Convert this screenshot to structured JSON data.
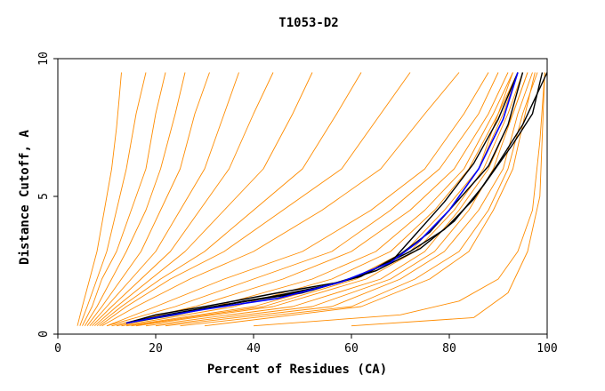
{
  "chart_data": {
    "type": "line",
    "title": "T1053-D2",
    "xlabel": "Percent of Residues (CA)",
    "ylabel": "Distance Cutoff, A",
    "xlim": [
      0,
      100
    ],
    "ylim": [
      0,
      10
    ],
    "xticks": [
      "0",
      "20",
      "40",
      "60",
      "80",
      "100"
    ],
    "yticks": [
      "0",
      "5",
      "10"
    ],
    "grid": false,
    "legend": "none",
    "colors": {
      "bundle": "#ff8c00",
      "highlight_black": "#000000",
      "highlight_blue": "#0000ff",
      "axis": "#000000"
    },
    "bundle_series": [
      {
        "x": [
          4,
          5,
          6.5,
          8,
          9.5,
          11,
          12,
          12.5,
          13
        ],
        "y": [
          0.3,
          1,
          2,
          3,
          4.5,
          6,
          7.5,
          8.5,
          9.5
        ]
      },
      {
        "x": [
          4.5,
          6,
          8,
          10,
          12,
          14,
          16,
          18
        ],
        "y": [
          0.3,
          1,
          2,
          3,
          4.5,
          6,
          8,
          9.5
        ]
      },
      {
        "x": [
          5,
          7,
          9,
          12,
          15,
          18,
          20,
          22
        ],
        "y": [
          0.3,
          1,
          2,
          3,
          4.5,
          6,
          8,
          9.5
        ]
      },
      {
        "x": [
          5.5,
          8,
          11,
          14,
          18,
          21,
          24,
          26
        ],
        "y": [
          0.3,
          1,
          2,
          3,
          4.5,
          6,
          8,
          9.5
        ]
      },
      {
        "x": [
          6,
          9,
          13,
          17,
          21,
          25,
          28,
          31
        ],
        "y": [
          0.3,
          1,
          2,
          3,
          4.5,
          6,
          8,
          9.5
        ]
      },
      {
        "x": [
          6.5,
          10,
          15,
          20,
          25,
          30,
          34,
          37
        ],
        "y": [
          0.3,
          1,
          2,
          3,
          4.5,
          6,
          8,
          9.5
        ]
      },
      {
        "x": [
          7,
          11,
          17,
          23,
          29,
          35,
          40,
          44
        ],
        "y": [
          0.3,
          1,
          2,
          3,
          4.5,
          6,
          8,
          9.5
        ]
      },
      {
        "x": [
          7.5,
          12,
          19,
          26,
          34,
          42,
          48,
          52
        ],
        "y": [
          0.3,
          1,
          2,
          3,
          4.5,
          6,
          8,
          9.5
        ]
      },
      {
        "x": [
          8,
          13,
          21,
          30,
          40,
          50,
          57,
          62
        ],
        "y": [
          0.3,
          1,
          2,
          3,
          4.5,
          6,
          8,
          9.5
        ]
      },
      {
        "x": [
          8.5,
          14,
          23,
          34,
          46,
          58,
          66,
          72
        ],
        "y": [
          0.3,
          1,
          2,
          3,
          4.5,
          6,
          8,
          9.5
        ]
      },
      {
        "x": [
          9,
          16,
          27,
          40,
          54,
          66,
          75,
          82
        ],
        "y": [
          0.3,
          1,
          2,
          3,
          4.5,
          6,
          8,
          9.5
        ]
      },
      {
        "x": [
          10,
          20,
          34,
          50,
          64,
          75,
          83,
          88
        ],
        "y": [
          0.3,
          1,
          2,
          3,
          4.5,
          6,
          8,
          9.5
        ]
      },
      {
        "x": [
          10,
          24,
          40,
          56,
          68,
          78,
          86,
          90
        ],
        "y": [
          0.3,
          1,
          2,
          3,
          4.5,
          6,
          8,
          9.5
        ]
      },
      {
        "x": [
          11,
          28,
          46,
          60,
          72,
          81,
          88,
          92
        ],
        "y": [
          0.3,
          1,
          2,
          3,
          4.5,
          6,
          8,
          9.5
        ]
      },
      {
        "x": [
          12,
          32,
          52,
          65,
          75,
          83,
          89,
          93
        ],
        "y": [
          0.3,
          1,
          2,
          3,
          4.5,
          6,
          8,
          9.5
        ]
      },
      {
        "x": [
          13,
          36,
          56,
          68,
          77,
          84,
          90,
          94
        ],
        "y": [
          0.3,
          1,
          2,
          3,
          4.5,
          6,
          8,
          9.5
        ]
      },
      {
        "x": [
          14,
          40,
          60,
          71,
          79,
          86,
          91,
          94
        ],
        "y": [
          0.3,
          1,
          2,
          3,
          4.5,
          6,
          8,
          9.5
        ]
      },
      {
        "x": [
          16,
          44,
          63,
          73,
          81,
          87,
          92,
          95
        ],
        "y": [
          0.3,
          1,
          2,
          3,
          4.5,
          6,
          8,
          9.5
        ]
      },
      {
        "x": [
          18,
          48,
          66,
          75,
          82,
          88,
          93,
          96
        ],
        "y": [
          0.3,
          1,
          2,
          3,
          4.5,
          6,
          8,
          9.5
        ]
      },
      {
        "x": [
          20,
          52,
          68,
          77,
          84,
          89,
          93,
          96
        ],
        "y": [
          0.3,
          1,
          2,
          3,
          4.5,
          6,
          8,
          9.5
        ]
      },
      {
        "x": [
          22,
          56,
          70,
          79,
          86,
          91,
          94,
          97
        ],
        "y": [
          0.3,
          1,
          2,
          3,
          4.5,
          6,
          8,
          9.5
        ]
      },
      {
        "x": [
          25,
          60,
          73,
          82,
          88,
          92,
          95,
          98
        ],
        "y": [
          0.3,
          1,
          2,
          3,
          4.5,
          6,
          8,
          9.5
        ]
      },
      {
        "x": [
          40,
          70,
          82,
          90,
          94,
          97,
          98.5,
          99.5
        ],
        "y": [
          0.3,
          0.7,
          1.2,
          2,
          3,
          4.5,
          7,
          9.5
        ]
      },
      {
        "x": [
          60,
          85,
          92,
          96,
          98.5,
          99.5
        ],
        "y": [
          0.3,
          0.6,
          1.5,
          3,
          5,
          9.5
        ]
      },
      {
        "x": [
          30,
          62,
          76,
          84,
          89,
          93,
          95.5,
          97.5
        ],
        "y": [
          0.3,
          1,
          2,
          3,
          4.5,
          6,
          8,
          9.5
        ]
      },
      {
        "x": [
          15,
          42,
          61,
          72,
          80,
          86,
          90,
          93
        ],
        "y": [
          0.3,
          1,
          2,
          3,
          4.5,
          6,
          8,
          9.5
        ]
      }
    ],
    "series": [
      {
        "x": [
          14,
          20,
          30,
          45,
          58,
          68,
          74,
          80,
          86,
          91,
          94
        ],
        "y": [
          0.4,
          0.6,
          0.9,
          1.3,
          1.9,
          2.6,
          3.4,
          4.5,
          6,
          7.8,
          9.5
        ],
        "color": "#0000ff"
      },
      {
        "x": [
          14,
          20,
          30,
          45,
          58,
          68,
          73,
          79,
          85,
          90,
          94
        ],
        "y": [
          0.4,
          0.7,
          1.0,
          1.5,
          1.9,
          2.6,
          3.6,
          4.8,
          6.2,
          7.8,
          9.5
        ],
        "color": "#000000"
      },
      {
        "x": [
          14,
          22,
          35,
          50,
          62,
          70,
          76,
          82,
          88,
          92,
          95
        ],
        "y": [
          0.4,
          0.7,
          1.1,
          1.5,
          2.1,
          2.9,
          3.7,
          4.9,
          6.1,
          7.6,
          9.5
        ],
        "color": "#000000"
      },
      {
        "x": [
          14,
          24,
          38,
          52,
          63,
          72,
          79,
          85,
          90,
          95,
          95,
          100
        ],
        "y": [
          0.4,
          0.7,
          1.2,
          1.6,
          2.2,
          3.0,
          3.8,
          4.9,
          6.2,
          7.6,
          7.6,
          9.5
        ],
        "color": "#000000"
      },
      {
        "x": [
          14,
          26,
          42,
          56,
          65,
          74,
          81,
          87,
          93,
          97,
          99
        ],
        "y": [
          0.4,
          0.8,
          1.3,
          1.8,
          2.3,
          3.1,
          4.1,
          5.4,
          6.9,
          8.0,
          9.5
        ],
        "color": "#000000"
      }
    ]
  }
}
